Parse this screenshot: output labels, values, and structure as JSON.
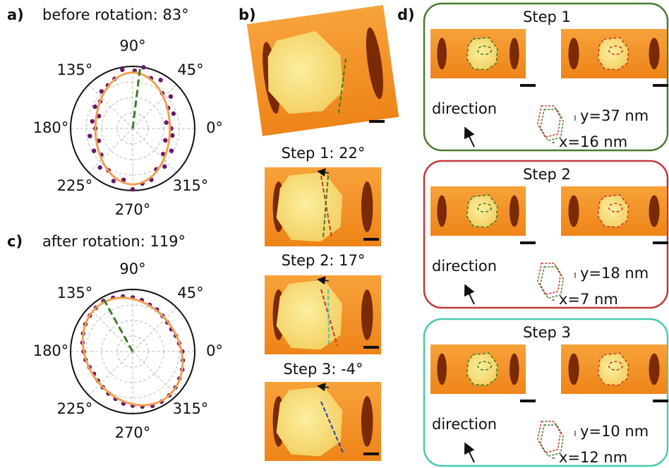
{
  "panel_a": {
    "label": "a)",
    "title": "before rotation: 83°",
    "orientation_deg": 83,
    "angle_labels": [
      "90°",
      "45°",
      "0°",
      "315°",
      "270°",
      "225°",
      "180°",
      "135°"
    ],
    "points": [
      [
        0,
        0.62
      ],
      [
        10,
        0.55
      ],
      [
        20,
        0.7
      ],
      [
        30,
        0.66
      ],
      [
        40,
        0.8
      ],
      [
        50,
        0.74
      ],
      [
        60,
        0.9
      ],
      [
        70,
        0.86
      ],
      [
        80,
        1.0
      ],
      [
        88,
        0.93
      ],
      [
        100,
        0.96
      ],
      [
        110,
        0.85
      ],
      [
        120,
        0.8
      ],
      [
        130,
        0.78
      ],
      [
        140,
        0.68
      ],
      [
        150,
        0.7
      ],
      [
        160,
        0.58
      ],
      [
        170,
        0.66
      ],
      [
        180,
        0.6
      ],
      [
        190,
        0.7
      ],
      [
        200,
        0.58
      ],
      [
        210,
        0.72
      ],
      [
        220,
        0.66
      ],
      [
        230,
        0.82
      ],
      [
        240,
        0.78
      ],
      [
        250,
        0.9
      ],
      [
        260,
        0.84
      ],
      [
        270,
        0.98
      ],
      [
        280,
        0.9
      ],
      [
        290,
        0.88
      ],
      [
        300,
        0.76
      ],
      [
        310,
        0.8
      ],
      [
        320,
        0.64
      ],
      [
        330,
        0.72
      ],
      [
        340,
        0.56
      ],
      [
        350,
        0.65
      ]
    ]
  },
  "panel_b": {
    "label": "b)",
    "steps": [
      "Step 1: 22°",
      "Step 2: 17°",
      "Step 3: -4°"
    ]
  },
  "panel_c": {
    "label": "c)",
    "title": "after rotation: 119°",
    "orientation_deg": 119,
    "angle_labels": [
      "90°",
      "45°",
      "0°",
      "315°",
      "270°",
      "225°",
      "180°",
      "135°"
    ],
    "points": [
      [
        0,
        0.8
      ],
      [
        10,
        0.76
      ],
      [
        20,
        0.74
      ],
      [
        30,
        0.72
      ],
      [
        40,
        0.73
      ],
      [
        50,
        0.75
      ],
      [
        60,
        0.78
      ],
      [
        70,
        0.8
      ],
      [
        80,
        0.84
      ],
      [
        90,
        0.87
      ],
      [
        100,
        0.9
      ],
      [
        110,
        0.92
      ],
      [
        120,
        0.94
      ],
      [
        130,
        0.92
      ],
      [
        140,
        0.9
      ],
      [
        150,
        0.88
      ],
      [
        160,
        0.85
      ],
      [
        170,
        0.82
      ],
      [
        180,
        0.79
      ],
      [
        190,
        0.77
      ],
      [
        200,
        0.74
      ],
      [
        210,
        0.72
      ],
      [
        220,
        0.73
      ],
      [
        230,
        0.75
      ],
      [
        240,
        0.78
      ],
      [
        250,
        0.81
      ],
      [
        260,
        0.85
      ],
      [
        270,
        0.87
      ],
      [
        280,
        0.9
      ],
      [
        290,
        0.93
      ],
      [
        300,
        0.93
      ],
      [
        310,
        0.92
      ],
      [
        320,
        0.9
      ],
      [
        330,
        0.87
      ],
      [
        340,
        0.85
      ],
      [
        350,
        0.82
      ]
    ]
  },
  "panel_d": {
    "label": "d)",
    "steps": [
      {
        "title": "Step 1",
        "direction": "direction",
        "y": "y=37 nm",
        "x": "x=16 nm"
      },
      {
        "title": "Step 2",
        "direction": "direction",
        "y": "y=18 nm",
        "x": "x=7 nm"
      },
      {
        "title": "Step 3",
        "direction": "direction",
        "y": "y=10 nm",
        "x": "x=12 nm"
      }
    ]
  }
}
